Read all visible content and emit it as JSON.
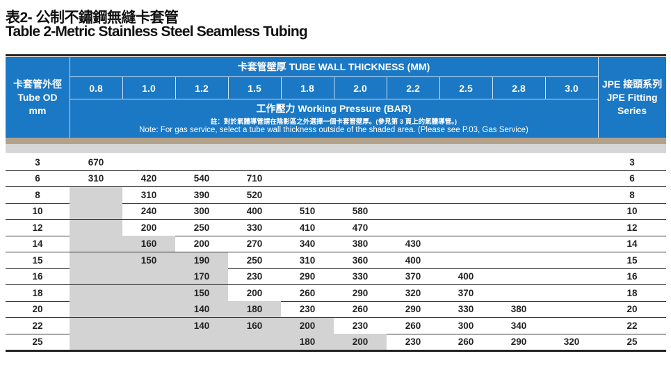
{
  "title_zh": "表2- 公制不鏽鋼無縫卡套管",
  "title_en": "Table 2-Metric  Stainless Steel Seamless Tubing",
  "header": {
    "od_zh": "卡套管外徑",
    "od_en": "Tube OD",
    "od_unit": "mm",
    "thickness_label": "卡套管壁厚 TUBE WALL THICKNESS (MM)",
    "thicknesses": [
      "0.8",
      "1.0",
      "1.2",
      "1.5",
      "1.8",
      "2.0",
      "2.2",
      "2.5",
      "2.8",
      "3.0"
    ],
    "pressure_label": "工作壓力  Working Pressure (BAR)",
    "note_zh": "註：對於氣體導管請在陰影區之外選擇一個卡套管壁厚。(參見第 3 頁上的氣體導管。)",
    "note_en": "Note: For gas service, select a tube wall thickness outside of the shaded area. (Please see P.03, Gas Service)",
    "jpe_zh": "JPE 接頭系列",
    "jpe_en1": "JPE Fitting",
    "jpe_en2": "Series"
  },
  "colors": {
    "header_blue": "#1b78c4",
    "shade": "#d3d3d3",
    "stripe_brown": "#b3a28b"
  },
  "rows": [
    {
      "od": "3",
      "values": [
        "670",
        "",
        "",
        "",
        "",
        "",
        "",
        "",
        "",
        ""
      ],
      "shaded": 0,
      "jpe": "3"
    },
    {
      "od": "6",
      "values": [
        "310",
        "420",
        "540",
        "710",
        "",
        "",
        "",
        "",
        "",
        ""
      ],
      "shaded": 0,
      "jpe": "6"
    },
    {
      "od": "8",
      "values": [
        "",
        "310",
        "390",
        "520",
        "",
        "",
        "",
        "",
        "",
        ""
      ],
      "shaded": 1,
      "jpe": "8"
    },
    {
      "od": "10",
      "values": [
        "",
        "240",
        "300",
        "400",
        "510",
        "580",
        "",
        "",
        "",
        ""
      ],
      "shaded": 1,
      "jpe": "10"
    },
    {
      "od": "12",
      "values": [
        "",
        "200",
        "250",
        "330",
        "410",
        "470",
        "",
        "",
        "",
        ""
      ],
      "shaded": 1,
      "jpe": "12"
    },
    {
      "od": "14",
      "values": [
        "",
        "160",
        "200",
        "270",
        "340",
        "380",
        "430",
        "",
        "",
        ""
      ],
      "shaded": 2,
      "jpe": "14"
    },
    {
      "od": "15",
      "values": [
        "",
        "150",
        "190",
        "250",
        "310",
        "360",
        "400",
        "",
        "",
        ""
      ],
      "shaded": 3,
      "jpe": "15"
    },
    {
      "od": "16",
      "values": [
        "",
        "",
        "170",
        "230",
        "290",
        "330",
        "370",
        "400",
        "",
        ""
      ],
      "shaded": 3,
      "jpe": "16"
    },
    {
      "od": "18",
      "values": [
        "",
        "",
        "150",
        "200",
        "260",
        "290",
        "320",
        "370",
        "",
        ""
      ],
      "shaded": 3,
      "jpe": "18"
    },
    {
      "od": "20",
      "values": [
        "",
        "",
        "140",
        "180",
        "230",
        "260",
        "290",
        "330",
        "380",
        ""
      ],
      "shaded": 4,
      "jpe": "20"
    },
    {
      "od": "22",
      "values": [
        "",
        "",
        "140",
        "160",
        "200",
        "230",
        "260",
        "300",
        "340",
        ""
      ],
      "shaded": 5,
      "jpe": "22"
    },
    {
      "od": "25",
      "values": [
        "",
        "",
        "",
        "",
        "180",
        "200",
        "230",
        "260",
        "290",
        "320"
      ],
      "shaded": 6,
      "jpe": "25"
    }
  ]
}
